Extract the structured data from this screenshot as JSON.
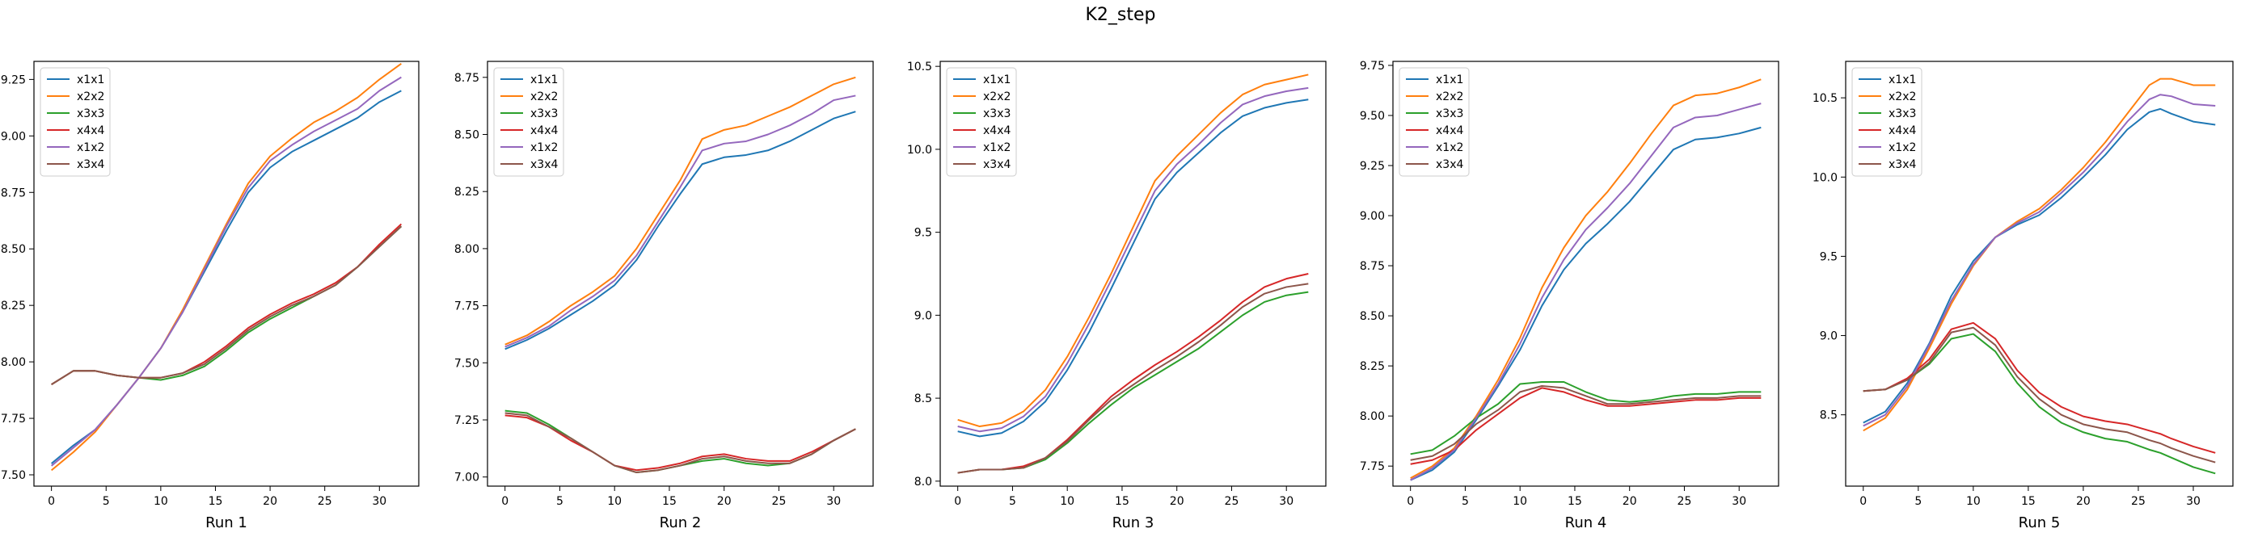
{
  "figure": {
    "title": "K2_step"
  },
  "chart_data": [
    {
      "type": "line",
      "xlabel": "Run 1",
      "xlim": [
        -1.6,
        33.6
      ],
      "ylim": [
        7.45,
        9.33
      ],
      "xticks": [
        0,
        5,
        10,
        15,
        20,
        25,
        30
      ],
      "yticks": [
        7.5,
        7.75,
        8.0,
        8.25,
        8.5,
        8.75,
        9.0,
        9.25
      ],
      "ytick_labels": [
        "7.50",
        "7.75",
        "8.00",
        "8.25",
        "8.50",
        "8.75",
        "9.00",
        "9.25"
      ],
      "legend_position": "upper left",
      "x": [
        0,
        2,
        4,
        6,
        8,
        10,
        12,
        14,
        16,
        18,
        20,
        22,
        24,
        26,
        28,
        30,
        32
      ],
      "series": [
        {
          "name": "x1x1",
          "color": "#1f77b4",
          "values": [
            7.55,
            7.63,
            7.7,
            7.81,
            7.93,
            8.06,
            8.22,
            8.4,
            8.58,
            8.75,
            8.86,
            8.93,
            8.98,
            9.03,
            9.08,
            9.15,
            9.2
          ]
        },
        {
          "name": "x2x2",
          "color": "#ff7f0e",
          "values": [
            7.52,
            7.6,
            7.69,
            7.81,
            7.93,
            8.06,
            8.23,
            8.42,
            8.61,
            8.79,
            8.91,
            8.99,
            9.06,
            9.11,
            9.17,
            9.25,
            9.32
          ]
        },
        {
          "name": "x3x3",
          "color": "#2ca02c",
          "values": [
            7.9,
            7.96,
            7.96,
            7.94,
            7.93,
            7.92,
            7.94,
            7.98,
            8.05,
            8.13,
            8.19,
            8.24,
            8.29,
            8.34,
            8.42,
            8.51,
            8.6
          ]
        },
        {
          "name": "x4x4",
          "color": "#d62728",
          "values": [
            7.9,
            7.96,
            7.96,
            7.94,
            7.93,
            7.93,
            7.95,
            8.0,
            8.07,
            8.15,
            8.21,
            8.26,
            8.3,
            8.35,
            8.42,
            8.52,
            8.61
          ]
        },
        {
          "name": "x1x2",
          "color": "#9467bd",
          "values": [
            7.54,
            7.62,
            7.7,
            7.81,
            7.93,
            8.06,
            8.22,
            8.41,
            8.6,
            8.77,
            8.89,
            8.96,
            9.02,
            9.07,
            9.12,
            9.2,
            9.26
          ]
        },
        {
          "name": "x3x4",
          "color": "#8c564b",
          "values": [
            7.9,
            7.96,
            7.96,
            7.94,
            7.93,
            7.93,
            7.95,
            7.99,
            8.06,
            8.14,
            8.2,
            8.25,
            8.29,
            8.34,
            8.42,
            8.51,
            8.6
          ]
        }
      ]
    },
    {
      "type": "line",
      "xlabel": "Run 2",
      "xlim": [
        -1.6,
        33.6
      ],
      "ylim": [
        6.96,
        8.82
      ],
      "xticks": [
        0,
        5,
        10,
        15,
        20,
        25,
        30
      ],
      "yticks": [
        7.0,
        7.25,
        7.5,
        7.75,
        8.0,
        8.25,
        8.5,
        8.75
      ],
      "ytick_labels": [
        "7.00",
        "7.25",
        "7.50",
        "7.75",
        "8.00",
        "8.25",
        "8.50",
        "8.75"
      ],
      "legend_position": "upper left",
      "x": [
        0,
        2,
        4,
        6,
        8,
        10,
        12,
        14,
        16,
        18,
        20,
        22,
        24,
        26,
        28,
        30,
        32
      ],
      "series": [
        {
          "name": "x1x1",
          "color": "#1f77b4",
          "values": [
            7.56,
            7.6,
            7.65,
            7.71,
            7.77,
            7.84,
            7.95,
            8.1,
            8.24,
            8.37,
            8.4,
            8.41,
            8.43,
            8.47,
            8.52,
            8.57,
            8.6
          ]
        },
        {
          "name": "x2x2",
          "color": "#ff7f0e",
          "values": [
            7.58,
            7.62,
            7.68,
            7.75,
            7.81,
            7.88,
            8.0,
            8.15,
            8.3,
            8.48,
            8.52,
            8.54,
            8.58,
            8.62,
            8.67,
            8.72,
            8.75
          ]
        },
        {
          "name": "x3x3",
          "color": "#2ca02c",
          "values": [
            7.29,
            7.28,
            7.23,
            7.17,
            7.11,
            7.05,
            7.02,
            7.03,
            7.05,
            7.07,
            7.08,
            7.06,
            7.05,
            7.06,
            7.1,
            7.16,
            7.21
          ]
        },
        {
          "name": "x4x4",
          "color": "#d62728",
          "values": [
            7.27,
            7.26,
            7.22,
            7.16,
            7.11,
            7.05,
            7.03,
            7.04,
            7.06,
            7.09,
            7.1,
            7.08,
            7.07,
            7.07,
            7.11,
            7.16,
            7.21
          ]
        },
        {
          "name": "x1x2",
          "color": "#9467bd",
          "values": [
            7.57,
            7.61,
            7.66,
            7.73,
            7.79,
            7.86,
            7.97,
            8.12,
            8.27,
            8.43,
            8.46,
            8.47,
            8.5,
            8.54,
            8.59,
            8.65,
            8.67
          ]
        },
        {
          "name": "x3x4",
          "color": "#8c564b",
          "values": [
            7.28,
            7.27,
            7.22,
            7.17,
            7.11,
            7.05,
            7.02,
            7.03,
            7.05,
            7.08,
            7.09,
            7.07,
            7.06,
            7.06,
            7.1,
            7.16,
            7.21
          ]
        }
      ]
    },
    {
      "type": "line",
      "xlabel": "Run 3",
      "xlim": [
        -1.6,
        33.6
      ],
      "ylim": [
        7.97,
        10.53
      ],
      "xticks": [
        0,
        5,
        10,
        15,
        20,
        25,
        30
      ],
      "yticks": [
        8.0,
        8.5,
        9.0,
        9.5,
        10.0,
        10.5
      ],
      "ytick_labels": [
        "8.0",
        "8.5",
        "9.0",
        "9.5",
        "10.0",
        "10.5"
      ],
      "legend_position": "upper left",
      "x": [
        0,
        2,
        4,
        6,
        8,
        10,
        12,
        14,
        16,
        18,
        20,
        22,
        24,
        26,
        28,
        30,
        32
      ],
      "series": [
        {
          "name": "x1x1",
          "color": "#1f77b4",
          "values": [
            8.3,
            8.27,
            8.29,
            8.36,
            8.48,
            8.67,
            8.9,
            9.16,
            9.43,
            9.7,
            9.86,
            9.98,
            10.1,
            10.2,
            10.25,
            10.28,
            10.3
          ]
        },
        {
          "name": "x2x2",
          "color": "#ff7f0e",
          "values": [
            8.37,
            8.33,
            8.35,
            8.42,
            8.55,
            8.75,
            8.99,
            9.25,
            9.53,
            9.81,
            9.96,
            10.09,
            10.22,
            10.33,
            10.39,
            10.42,
            10.45
          ]
        },
        {
          "name": "x3x3",
          "color": "#2ca02c",
          "values": [
            8.05,
            8.07,
            8.07,
            8.08,
            8.13,
            8.23,
            8.35,
            8.46,
            8.56,
            8.64,
            8.72,
            8.8,
            8.9,
            9.0,
            9.08,
            9.12,
            9.14
          ]
        },
        {
          "name": "x4x4",
          "color": "#d62728",
          "values": [
            8.05,
            8.07,
            8.07,
            8.09,
            8.14,
            8.25,
            8.38,
            8.51,
            8.61,
            8.7,
            8.78,
            8.87,
            8.97,
            9.08,
            9.17,
            9.22,
            9.25
          ]
        },
        {
          "name": "x1x2",
          "color": "#9467bd",
          "values": [
            8.33,
            8.3,
            8.32,
            8.39,
            8.51,
            8.71,
            8.95,
            9.21,
            9.48,
            9.75,
            9.91,
            10.03,
            10.16,
            10.27,
            10.32,
            10.35,
            10.37
          ]
        },
        {
          "name": "x3x4",
          "color": "#8c564b",
          "values": [
            8.05,
            8.07,
            8.07,
            8.08,
            8.14,
            8.24,
            8.37,
            8.49,
            8.58,
            8.67,
            8.75,
            8.84,
            8.94,
            9.05,
            9.13,
            9.17,
            9.19
          ]
        }
      ]
    },
    {
      "type": "line",
      "xlabel": "Run 4",
      "xlim": [
        -1.6,
        33.6
      ],
      "ylim": [
        7.65,
        9.77
      ],
      "xticks": [
        0,
        5,
        10,
        15,
        20,
        25,
        30
      ],
      "yticks": [
        7.75,
        8.0,
        8.25,
        8.5,
        8.75,
        9.0,
        9.25,
        9.5,
        9.75
      ],
      "ytick_labels": [
        "7.75",
        "8.00",
        "8.25",
        "8.50",
        "8.75",
        "9.00",
        "9.25",
        "9.50",
        "9.75"
      ],
      "legend_position": "upper left",
      "x": [
        0,
        2,
        4,
        6,
        8,
        10,
        12,
        14,
        16,
        18,
        20,
        22,
        24,
        26,
        28,
        30,
        32
      ],
      "series": [
        {
          "name": "x1x1",
          "color": "#1f77b4",
          "values": [
            7.68,
            7.73,
            7.82,
            7.98,
            8.15,
            8.33,
            8.55,
            8.73,
            8.86,
            8.96,
            9.07,
            9.2,
            9.33,
            9.38,
            9.39,
            9.41,
            9.44
          ]
        },
        {
          "name": "x2x2",
          "color": "#ff7f0e",
          "values": [
            7.69,
            7.75,
            7.84,
            8.0,
            8.18,
            8.39,
            8.64,
            8.84,
            9.0,
            9.12,
            9.26,
            9.41,
            9.55,
            9.6,
            9.61,
            9.64,
            9.68
          ]
        },
        {
          "name": "x3x3",
          "color": "#2ca02c",
          "values": [
            7.81,
            7.83,
            7.9,
            7.99,
            8.06,
            8.16,
            8.17,
            8.17,
            8.12,
            8.08,
            8.07,
            8.08,
            8.1,
            8.11,
            8.11,
            8.12,
            8.12
          ]
        },
        {
          "name": "x4x4",
          "color": "#d62728",
          "values": [
            7.76,
            7.78,
            7.83,
            7.93,
            8.01,
            8.09,
            8.14,
            8.12,
            8.08,
            8.05,
            8.05,
            8.06,
            8.07,
            8.08,
            8.08,
            8.09,
            8.09
          ]
        },
        {
          "name": "x1x2",
          "color": "#9467bd",
          "values": [
            7.68,
            7.74,
            7.83,
            7.99,
            8.16,
            8.36,
            8.59,
            8.78,
            8.93,
            9.04,
            9.16,
            9.3,
            9.44,
            9.49,
            9.5,
            9.53,
            9.56
          ]
        },
        {
          "name": "x3x4",
          "color": "#8c564b",
          "values": [
            7.78,
            7.8,
            7.86,
            7.96,
            8.03,
            8.12,
            8.15,
            8.14,
            8.1,
            8.06,
            8.06,
            8.07,
            8.08,
            8.09,
            8.09,
            8.1,
            8.1
          ]
        }
      ]
    },
    {
      "type": "line",
      "xlabel": "Run 5",
      "xlim": [
        -1.6,
        33.6
      ],
      "ylim": [
        8.05,
        10.73
      ],
      "xticks": [
        0,
        5,
        10,
        15,
        20,
        25,
        30
      ],
      "yticks": [
        8.5,
        9.0,
        9.5,
        10.0,
        10.5
      ],
      "ytick_labels": [
        "8.5",
        "9.0",
        "9.5",
        "10.0",
        "10.5"
      ],
      "legend_position": "upper left",
      "x": [
        0,
        2,
        4,
        6,
        8,
        10,
        12,
        14,
        16,
        18,
        20,
        22,
        24,
        26,
        27,
        28,
        30,
        32
      ],
      "series": [
        {
          "name": "x1x1",
          "color": "#1f77b4",
          "values": [
            8.45,
            8.52,
            8.7,
            8.95,
            9.25,
            9.47,
            9.62,
            9.7,
            9.76,
            9.87,
            10.0,
            10.14,
            10.3,
            10.41,
            10.43,
            10.4,
            10.35,
            10.33
          ]
        },
        {
          "name": "x2x2",
          "color": "#ff7f0e",
          "values": [
            8.4,
            8.48,
            8.66,
            8.92,
            9.2,
            9.44,
            9.62,
            9.72,
            9.8,
            9.92,
            10.06,
            10.22,
            10.4,
            10.58,
            10.62,
            10.62,
            10.58,
            10.58
          ]
        },
        {
          "name": "x3x3",
          "color": "#2ca02c",
          "values": [
            8.65,
            8.66,
            8.72,
            8.82,
            8.98,
            9.01,
            8.9,
            8.7,
            8.55,
            8.45,
            8.39,
            8.35,
            8.33,
            8.28,
            8.26,
            8.23,
            8.17,
            8.13
          ]
        },
        {
          "name": "x4x4",
          "color": "#d62728",
          "values": [
            8.65,
            8.66,
            8.73,
            8.85,
            9.04,
            9.08,
            8.98,
            8.78,
            8.64,
            8.55,
            8.49,
            8.46,
            8.44,
            8.4,
            8.38,
            8.35,
            8.3,
            8.26
          ]
        },
        {
          "name": "x1x2",
          "color": "#9467bd",
          "values": [
            8.43,
            8.5,
            8.68,
            8.94,
            9.22,
            9.45,
            9.62,
            9.71,
            9.78,
            9.9,
            10.03,
            10.18,
            10.35,
            10.49,
            10.52,
            10.51,
            10.46,
            10.45
          ]
        },
        {
          "name": "x3x4",
          "color": "#8c564b",
          "values": [
            8.65,
            8.66,
            8.72,
            8.83,
            9.02,
            9.05,
            8.94,
            8.74,
            8.6,
            8.5,
            8.44,
            8.41,
            8.39,
            8.34,
            8.32,
            8.29,
            8.24,
            8.2
          ]
        }
      ]
    }
  ]
}
